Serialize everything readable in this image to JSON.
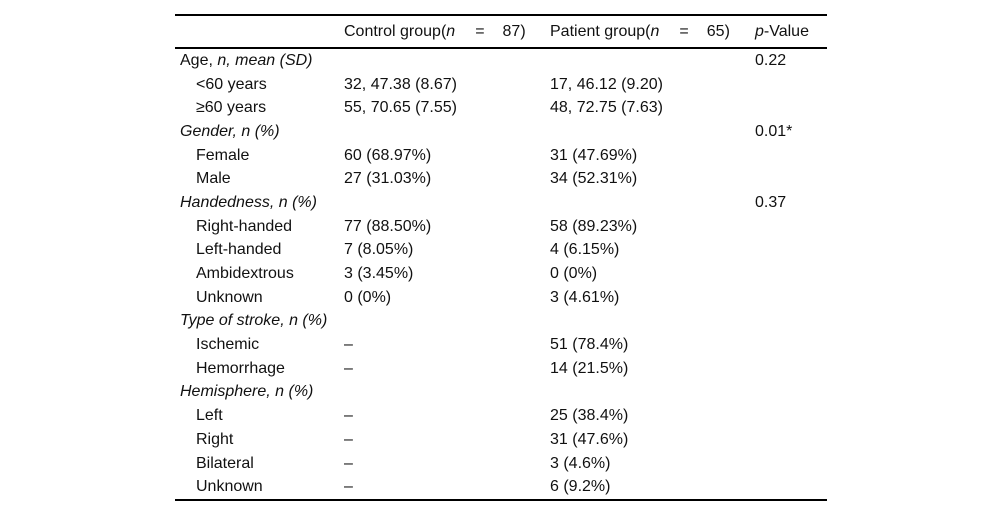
{
  "colors": {
    "background": "#ffffff",
    "text": "#111111",
    "rule": "#000000"
  },
  "table": {
    "header": {
      "row_label": "",
      "control": {
        "prefix": "Control group(",
        "n": "n",
        "eq": "=",
        "count": "87)"
      },
      "patient": {
        "prefix": "Patient group(",
        "n": "n",
        "eq": "=",
        "count": "65)"
      },
      "p": {
        "italic": "p",
        "rest": "-Value"
      }
    },
    "rows": [
      {
        "label_plain": "Age, ",
        "label_italic": "n, mean (SD)",
        "control": "",
        "patient": "",
        "p": "0.22"
      },
      {
        "label_plain": "<60 years",
        "label_italic": "",
        "control": "32, 47.38 (8.67)",
        "patient": "17, 46.12 (9.20)",
        "p": ""
      },
      {
        "label_plain": "≥60 years",
        "label_italic": "",
        "control": "55, 70.65 (7.55)",
        "patient": "48, 72.75 (7.63)",
        "p": ""
      },
      {
        "label_plain": "",
        "label_italic": "Gender, n (%)",
        "control": "",
        "patient": "",
        "p": "0.01*"
      },
      {
        "label_plain": "Female",
        "label_italic": "",
        "control": "60 (68.97%)",
        "patient": "31 (47.69%)",
        "p": ""
      },
      {
        "label_plain": "Male",
        "label_italic": "",
        "control": "27 (31.03%)",
        "patient": "34 (52.31%)",
        "p": ""
      },
      {
        "label_plain": "",
        "label_italic": "Handedness, n (%)",
        "control": "",
        "patient": "",
        "p": "0.37"
      },
      {
        "label_plain": "Right-handed",
        "label_italic": "",
        "control": "77 (88.50%)",
        "patient": "58 (89.23%)",
        "p": ""
      },
      {
        "label_plain": "Left-handed",
        "label_italic": "",
        "control": "7 (8.05%)",
        "patient": "4 (6.15%)",
        "p": ""
      },
      {
        "label_plain": "Ambidextrous",
        "label_italic": "",
        "control": "3 (3.45%)",
        "patient": "0 (0%)",
        "p": ""
      },
      {
        "label_plain": "Unknown",
        "label_italic": "",
        "control": "0 (0%)",
        "patient": "3 (4.61%)",
        "p": ""
      },
      {
        "label_plain": "",
        "label_italic": "Type of stroke, n (%)",
        "control": "",
        "patient": "",
        "p": ""
      },
      {
        "label_plain": "Ischemic",
        "label_italic": "",
        "control": "–",
        "patient": "51 (78.4%)",
        "p": ""
      },
      {
        "label_plain": "Hemorrhage",
        "label_italic": "",
        "control": "–",
        "patient": "14 (21.5%)",
        "p": ""
      },
      {
        "label_plain": "",
        "label_italic": "Hemisphere, n (%)",
        "control": "",
        "patient": "",
        "p": ""
      },
      {
        "label_plain": "Left",
        "label_italic": "",
        "control": "–",
        "patient": "25 (38.4%)",
        "p": ""
      },
      {
        "label_plain": "Right",
        "label_italic": "",
        "control": "–",
        "patient": "31 (47.6%)",
        "p": ""
      },
      {
        "label_plain": "Bilateral",
        "label_italic": "",
        "control": "–",
        "patient": "3 (4.6%)",
        "p": ""
      },
      {
        "label_plain": "Unknown",
        "label_italic": "",
        "control": "–",
        "patient": "6 (9.2%)",
        "p": ""
      }
    ]
  }
}
